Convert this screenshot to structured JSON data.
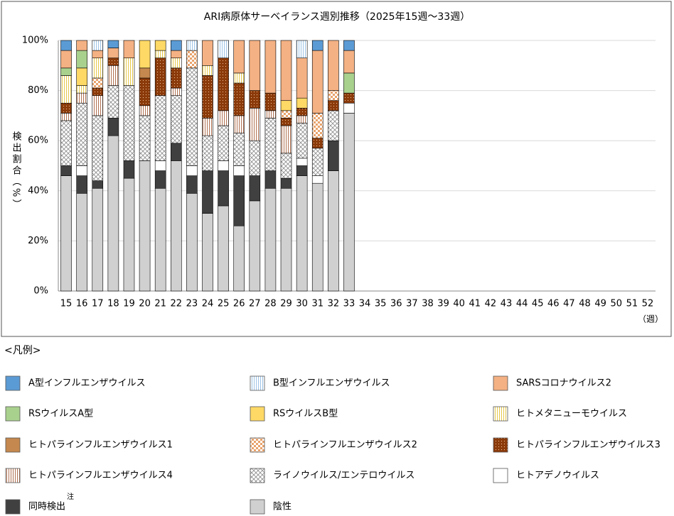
{
  "chart_data": {
    "type": "stacked-bar",
    "title": "ARI病原体サーベイランス週別推移（2025年15週～33週）",
    "y_label": "検出割合（%）",
    "x_unit": "（週）",
    "legend_title": "<凡例>",
    "legend_note": "注",
    "categories": [
      "15",
      "16",
      "17",
      "18",
      "19",
      "20",
      "21",
      "22",
      "23",
      "24",
      "25",
      "26",
      "27",
      "28",
      "29",
      "30",
      "31",
      "32",
      "33",
      "34",
      "35",
      "36",
      "37",
      "38",
      "39",
      "40",
      "41",
      "42",
      "43",
      "44",
      "45",
      "46",
      "47",
      "48",
      "49",
      "50",
      "51",
      "52"
    ],
    "ylim": [
      0,
      100
    ],
    "yticks": [
      {
        "value": 0,
        "label": "0%"
      },
      {
        "value": 20,
        "label": "20%"
      },
      {
        "value": 40,
        "label": "40%"
      },
      {
        "value": 60,
        "label": "60%"
      },
      {
        "value": 80,
        "label": "80%"
      },
      {
        "value": 100,
        "label": "100%"
      }
    ],
    "grid": true,
    "series": [
      {
        "name": "A型インフルエンザウイルス",
        "color": "#5b9bd5",
        "values": [
          4,
          0,
          0,
          3,
          0,
          0,
          0,
          4,
          0,
          0,
          0,
          0,
          0,
          0,
          0,
          0,
          4,
          0,
          4,
          null,
          null,
          null,
          null,
          null,
          null,
          null,
          null,
          null,
          null,
          null,
          null,
          null,
          null,
          null,
          null,
          null,
          null,
          null
        ]
      },
      {
        "name": "B型インフルエンザウイルス",
        "color": "#9dc3e6",
        "pattern": "vertical-lines",
        "values": [
          0,
          0,
          4,
          0,
          0,
          0,
          0,
          0,
          4,
          0,
          7,
          0,
          0,
          0,
          0,
          7,
          0,
          0,
          0,
          null,
          null,
          null,
          null,
          null,
          null,
          null,
          null,
          null,
          null,
          null,
          null,
          null,
          null,
          null,
          null,
          null,
          null,
          null
        ]
      },
      {
        "name": "SARSコロナウイルス2",
        "color": "#f4b183",
        "values": [
          7,
          4,
          3,
          4,
          7,
          0,
          0,
          3,
          0,
          10,
          0,
          13,
          20,
          21,
          24,
          16,
          25,
          20,
          9,
          null,
          null,
          null,
          null,
          null,
          null,
          null,
          null,
          null,
          null,
          null,
          null,
          null,
          null,
          null,
          null,
          null,
          null,
          null
        ]
      },
      {
        "name": "RSウイルスA型",
        "color": "#a9d18e",
        "values": [
          3,
          7,
          0,
          0,
          0,
          0,
          0,
          0,
          0,
          0,
          0,
          0,
          0,
          0,
          0,
          0,
          0,
          0,
          8,
          null,
          null,
          null,
          null,
          null,
          null,
          null,
          null,
          null,
          null,
          null,
          null,
          null,
          null,
          null,
          null,
          null,
          null,
          null
        ]
      },
      {
        "name": "RSウイルスB型",
        "color": "#ffd966",
        "values": [
          0,
          7,
          0,
          0,
          0,
          11,
          4,
          0,
          0,
          0,
          0,
          0,
          0,
          0,
          4,
          4,
          0,
          0,
          0,
          null,
          null,
          null,
          null,
          null,
          null,
          null,
          null,
          null,
          null,
          null,
          null,
          null,
          null,
          null,
          null,
          null,
          null,
          null
        ]
      },
      {
        "name": "ヒトメタニューモウイルス",
        "color": "#e6c84a",
        "pattern": "vertical-lines",
        "values": [
          11,
          3,
          8,
          0,
          11,
          0,
          3,
          4,
          0,
          4,
          0,
          4,
          0,
          0,
          0,
          0,
          0,
          0,
          0,
          null,
          null,
          null,
          null,
          null,
          null,
          null,
          null,
          null,
          null,
          null,
          null,
          null,
          null,
          null,
          null,
          null,
          null,
          null
        ]
      },
      {
        "name": "ヒトパラインフルエンザウイルス1",
        "color": "#c5884e",
        "values": [
          0,
          0,
          0,
          0,
          0,
          4,
          0,
          0,
          0,
          0,
          0,
          0,
          0,
          0,
          0,
          0,
          0,
          0,
          0,
          null,
          null,
          null,
          null,
          null,
          null,
          null,
          null,
          null,
          null,
          null,
          null,
          null,
          null,
          null,
          null,
          null,
          null,
          null
        ]
      },
      {
        "name": "ヒトパラインフルエンザウイルス2",
        "color": "#e9a36c",
        "pattern": "checker",
        "values": [
          0,
          0,
          4,
          0,
          0,
          0,
          0,
          0,
          7,
          0,
          0,
          0,
          0,
          0,
          3,
          0,
          10,
          4,
          0,
          null,
          null,
          null,
          null,
          null,
          null,
          null,
          null,
          null,
          null,
          null,
          null,
          null,
          null,
          null,
          null,
          null,
          null,
          null
        ]
      },
      {
        "name": "ヒトパラインフルエンザウイルス3",
        "color": "#8b3a0a",
        "pattern": "dots",
        "values": [
          4,
          0,
          3,
          3,
          0,
          11,
          15,
          8,
          0,
          17,
          21,
          13,
          7,
          7,
          3,
          3,
          4,
          4,
          4,
          null,
          null,
          null,
          null,
          null,
          null,
          null,
          null,
          null,
          null,
          null,
          null,
          null,
          null,
          null,
          null,
          null,
          null,
          null
        ]
      },
      {
        "name": "ヒトパラインフルエンザウイルス4",
        "color": "#b07050",
        "pattern": "vertical-lines",
        "values": [
          3,
          4,
          8,
          8,
          0,
          4,
          0,
          3,
          0,
          7,
          6,
          7,
          13,
          3,
          11,
          3,
          0,
          0,
          0,
          null,
          null,
          null,
          null,
          null,
          null,
          null,
          null,
          null,
          null,
          null,
          null,
          null,
          null,
          null,
          null,
          null,
          null,
          null
        ]
      },
      {
        "name": "ライノウイルス/エンテロウイルス",
        "color": "#8c8c8c",
        "pattern": "crosshatch",
        "values": [
          18,
          25,
          26,
          13,
          30,
          18,
          26,
          19,
          39,
          14,
          14,
          13,
          14,
          21,
          10,
          14,
          11,
          12,
          0,
          null,
          null,
          null,
          null,
          null,
          null,
          null,
          null,
          null,
          null,
          null,
          null,
          null,
          null,
          null,
          null,
          null,
          null,
          null
        ]
      },
      {
        "name": "ヒトアデノウイルス",
        "color": "#ffffff",
        "values": [
          0,
          4,
          0,
          0,
          0,
          0,
          4,
          0,
          4,
          0,
          4,
          4,
          0,
          0,
          0,
          3,
          3,
          0,
          4,
          null,
          null,
          null,
          null,
          null,
          null,
          null,
          null,
          null,
          null,
          null,
          null,
          null,
          null,
          null,
          null,
          null,
          null,
          null
        ]
      },
      {
        "name": "同時検出",
        "color": "#404040",
        "values": [
          4,
          7,
          3,
          7,
          7,
          0,
          7,
          7,
          7,
          17,
          14,
          20,
          10,
          7,
          4,
          4,
          0,
          12,
          0,
          null,
          null,
          null,
          null,
          null,
          null,
          null,
          null,
          null,
          null,
          null,
          null,
          null,
          null,
          null,
          null,
          null,
          null,
          null
        ]
      },
      {
        "name": "陰性",
        "color": "#d0d0d0",
        "values": [
          46,
          39,
          41,
          62,
          45,
          52,
          41,
          52,
          39,
          31,
          34,
          26,
          36,
          41,
          41,
          46,
          43,
          48,
          71,
          null,
          null,
          null,
          null,
          null,
          null,
          null,
          null,
          null,
          null,
          null,
          null,
          null,
          null,
          null,
          null,
          null,
          null,
          null
        ]
      }
    ]
  }
}
